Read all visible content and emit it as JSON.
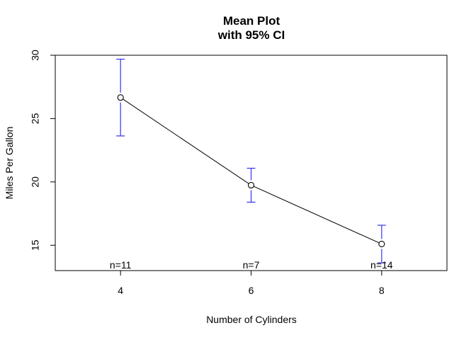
{
  "chart_data": {
    "type": "line",
    "title_line1": "Mean Plot",
    "title_line2": "with 95% CI",
    "xlabel": "Number of Cylinders",
    "ylabel": "Miles Per Gallon",
    "x": [
      4,
      6,
      8
    ],
    "x_tick_labels": [
      "4",
      "6",
      "8"
    ],
    "xlim": [
      3,
      9
    ],
    "ylim": [
      13,
      30
    ],
    "y_ticks": [
      15,
      20,
      25,
      30
    ],
    "y_tick_labels": [
      "15",
      "20",
      "25",
      "30"
    ],
    "series": [
      {
        "means": [
          26.66,
          19.74,
          15.1
        ],
        "ci_lower": [
          23.63,
          18.4,
          13.62
        ],
        "ci_upper": [
          29.69,
          21.08,
          16.58
        ],
        "counts": [
          "n=11",
          "n=7",
          "n=14"
        ]
      }
    ],
    "colors": {
      "line": "#000000",
      "error_bar": "#3333ee",
      "point": "#000000"
    },
    "grid": false,
    "legend": "none"
  }
}
